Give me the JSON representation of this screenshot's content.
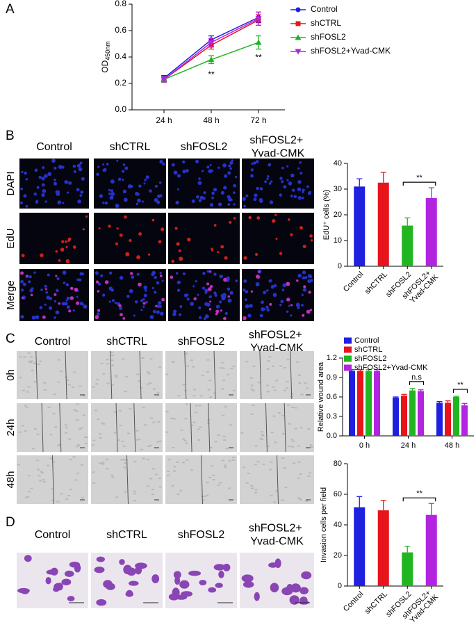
{
  "panel_labels": [
    "A",
    "B",
    "C",
    "D"
  ],
  "images": {
    "B": {
      "columns": [
        "Control",
        "shCTRL",
        "shFOSL2",
        "shFOSL2+ Yvad-CMK"
      ],
      "rows": [
        "DAPI",
        "EdU",
        "Merge"
      ]
    },
    "C": {
      "columns": [
        "Control",
        "shCTRL",
        "shFOSL2",
        "shFOSL2+ Yvad-CMK"
      ],
      "rows": [
        "0h",
        "24h",
        "48h"
      ]
    },
    "D": {
      "columns": [
        "Control",
        "shCTRL",
        "shFOSL2",
        "shFOSL2+ Yvad-CMK"
      ]
    }
  },
  "chart_data": [
    {
      "type": "line",
      "y_label": "OD",
      "y_label_subscript": "450nm",
      "categories": [
        "24 h",
        "48 h",
        "72 h"
      ],
      "series": [
        {
          "name": "Control",
          "color": "#1f1fe0",
          "marker": "circle",
          "values": [
            0.24,
            0.53,
            0.7
          ],
          "errors": [
            0.02,
            0.03,
            0.04
          ]
        },
        {
          "name": "shCTRL",
          "color": "#e8141c",
          "marker": "square",
          "values": [
            0.23,
            0.49,
            0.68
          ],
          "errors": [
            0.02,
            0.03,
            0.04
          ]
        },
        {
          "name": "shFOSL2",
          "color": "#21b521",
          "marker": "triangle",
          "values": [
            0.23,
            0.38,
            0.51
          ],
          "errors": [
            0.02,
            0.03,
            0.05
          ]
        },
        {
          "name": "shFOSL2+Yvad-CMK",
          "color": "#b324e0",
          "marker": "triangle-down",
          "values": [
            0.23,
            0.51,
            0.69
          ],
          "errors": [
            0.02,
            0.03,
            0.05
          ]
        }
      ],
      "annotations": [
        "**",
        "**"
      ],
      "ylim": [
        0,
        0.8
      ],
      "yticks": [
        {
          "value": 0,
          "label": "0.0"
        },
        0.2,
        0.4,
        0.6,
        0.8
      ],
      "legend": "right"
    },
    {
      "type": "bar",
      "y_label": "EdU⁺ cells (%)",
      "categories": [
        "Control",
        "shCTRL",
        "shFOSL2",
        "shFOSL2+ Yvad-CMK"
      ],
      "values": [
        31,
        32.5,
        15.8,
        26.5
      ],
      "errors": [
        3,
        4,
        3,
        4
      ],
      "colors": [
        "#1f1fe0",
        "#e8141c",
        "#21b521",
        "#b324e0"
      ],
      "annotations": [
        "**"
      ],
      "ylim": [
        0,
        40
      ],
      "yticks": [
        0,
        10,
        20,
        30,
        40
      ]
    },
    {
      "type": "grouped-bar",
      "y_label": "Relative wound area",
      "categories": [
        "0 h",
        "24 h",
        "48 h"
      ],
      "series": [
        {
          "name": "Control",
          "color": "#1f1fe0",
          "values": [
            1.0,
            0.59,
            0.51
          ],
          "errors": [
            0.02,
            0.01,
            0.02
          ]
        },
        {
          "name": "shCTRL",
          "color": "#e8141c",
          "values": [
            1.0,
            0.62,
            0.51
          ],
          "errors": [
            0.02,
            0.02,
            0.03
          ]
        },
        {
          "name": "shFOSL2",
          "color": "#21b521",
          "values": [
            1.0,
            0.7,
            0.6
          ],
          "errors": [
            0.02,
            0.03,
            0.01
          ]
        },
        {
          "name": "shFOSL2+Yvad-CMK",
          "color": "#b324e0",
          "values": [
            1.0,
            0.69,
            0.47
          ],
          "errors": [
            0.02,
            0.02,
            0.03
          ]
        }
      ],
      "annotations": [
        "n.s",
        "**"
      ],
      "ylim": [
        0,
        1.2
      ],
      "yticks": [
        {
          "value": 0,
          "label": "0.0"
        },
        0.3,
        0.6,
        0.9,
        1.2
      ],
      "legend": "top"
    },
    {
      "type": "bar",
      "y_label": "Invasion cells per field",
      "categories": [
        "Control",
        "shCTRL",
        "shFOSL2",
        "shFOSL2+ Yvad-CMK"
      ],
      "values": [
        51.5,
        49.5,
        22,
        46.5
      ],
      "errors": [
        7,
        6.5,
        4,
        7.5
      ],
      "colors": [
        "#1f1fe0",
        "#e8141c",
        "#21b521",
        "#b324e0"
      ],
      "annotations": [
        "**"
      ],
      "ylim": [
        0,
        80
      ],
      "yticks": [
        0,
        20,
        40,
        60,
        80
      ]
    }
  ]
}
